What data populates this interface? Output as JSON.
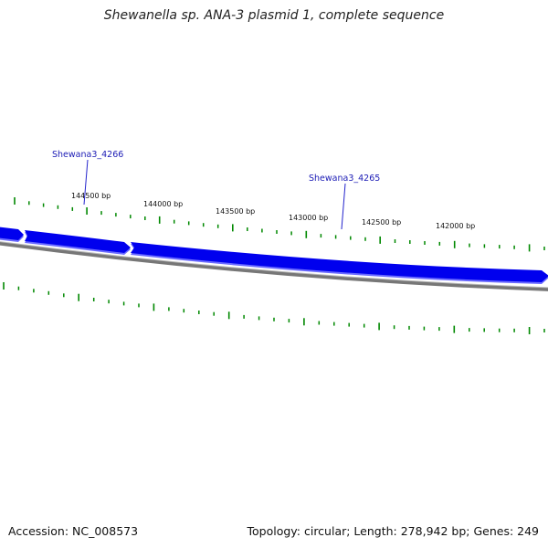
{
  "title": "Shewanella sp. ANA-3 plasmid 1, complete sequence",
  "footer": {
    "accession": "Accession: NC_008573",
    "summary": "Topology: circular; Length: 278,942 bp; Genes: 249"
  },
  "colors": {
    "forward_gene": "#0000ee",
    "forward_gene_shadow": "#6a6aff",
    "backbone": "#777777",
    "backbone_highlight": "#bbbbbb",
    "ticks": "#008800",
    "tick_label": "#111111",
    "gene_label": "#1b1bb5",
    "callout_line": "#2222cc"
  },
  "scale": {
    "tick_labels": [
      {
        "bp": 144500,
        "text": "144500 bp"
      },
      {
        "bp": 144000,
        "text": "144000 bp"
      },
      {
        "bp": 143500,
        "text": "143500 bp"
      },
      {
        "bp": 143000,
        "text": "143000 bp"
      },
      {
        "bp": 142500,
        "text": "142500 bp"
      },
      {
        "bp": 142000,
        "text": "142000 bp"
      }
    ]
  },
  "genes": [
    {
      "name": "Shewana3_4266"
    },
    {
      "name": "Shewana3_4265"
    }
  ]
}
